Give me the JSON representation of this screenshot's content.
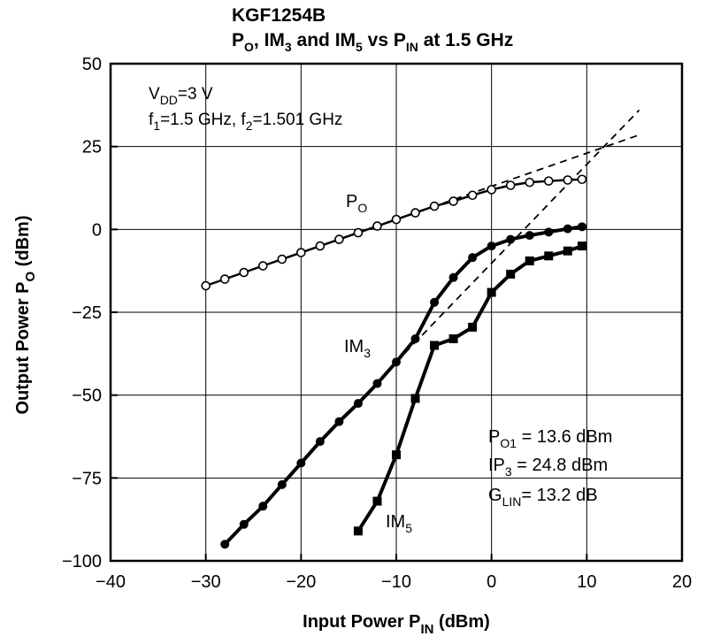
{
  "chart_data": {
    "type": "line",
    "title_line1": "KGF1254B",
    "title_line2": {
      "a": "P",
      "a_sub": "O",
      "b": ", IM",
      "b_sub": "3",
      "c": " and IM",
      "c_sub": "5",
      "d": " vs P",
      "d_sub": "IN",
      "e": " at 1.5 GHz"
    },
    "xlabel": {
      "main": "Input Power  P",
      "sub": "IN",
      "tail": "  (dBm)"
    },
    "ylabel": {
      "main": "Output Power  P",
      "sub": "O",
      "tail": "  (dBm)"
    },
    "xlim": [
      -40,
      20
    ],
    "ylim": [
      -100,
      50
    ],
    "x_ticks": [
      -40,
      -30,
      -20,
      -10,
      0,
      10,
      20
    ],
    "y_ticks": [
      -100,
      -75,
      -50,
      -25,
      0,
      25,
      50
    ],
    "x_tick_labels": [
      "−40",
      "−30",
      "−20",
      "−10",
      "0",
      "10",
      "20"
    ],
    "y_tick_labels": [
      "−100",
      "−75",
      "−50",
      "−25",
      "0",
      "25",
      "50"
    ],
    "grid": true,
    "conditions": {
      "vdd": {
        "main": "V",
        "sub": "DD",
        "tail": "=3 V"
      },
      "freq": {
        "a": "f",
        "a_sub": "1",
        "b": "=1.5 GHz, f",
        "b_sub": "2",
        "c": "=1.501 GHz"
      }
    },
    "summary": [
      {
        "main": "P",
        "sub": "O1",
        "tail": "  =  13.6 dBm"
      },
      {
        "main": "IP",
        "sub": "3",
        "tail": "  =  24.8 dBm"
      },
      {
        "main": "G",
        "sub": "LIN",
        "tail": "=  13.2 dB"
      }
    ],
    "series": [
      {
        "name": "P_O",
        "label": {
          "main": "P",
          "sub": "O"
        },
        "marker": "open-circle",
        "x": [
          -30,
          -28,
          -26,
          -24,
          -22,
          -20,
          -18,
          -16,
          -14,
          -12,
          -10,
          -8,
          -6,
          -4,
          -2,
          0,
          2,
          4,
          6,
          8,
          9.5
        ],
        "y": [
          -17,
          -15,
          -13,
          -11,
          -9,
          -7,
          -5,
          -3,
          -1,
          1,
          3,
          5,
          7,
          8.5,
          10.3,
          12,
          13.3,
          14.2,
          14.6,
          14.9,
          15.1
        ]
      },
      {
        "name": "IM_3",
        "label": {
          "main": "IM",
          "sub": "3"
        },
        "marker": "filled-circle",
        "x": [
          -28,
          -26,
          -24,
          -22,
          -20,
          -18,
          -16,
          -14,
          -12,
          -10,
          -8,
          -6,
          -4,
          -2,
          0,
          2,
          4,
          6,
          8,
          9.5
        ],
        "y": [
          -95,
          -89,
          -83.5,
          -77,
          -70.5,
          -64,
          -58,
          -52.5,
          -46.5,
          -40,
          -33,
          -22,
          -14.5,
          -8.5,
          -5,
          -3,
          -1.8,
          -0.8,
          0.2,
          0.8
        ]
      },
      {
        "name": "IM_5",
        "label": {
          "main": "IM",
          "sub": "5"
        },
        "marker": "filled-square",
        "x": [
          -14,
          -12,
          -10,
          -8,
          -6,
          -4,
          -2,
          0,
          2,
          4,
          6,
          8,
          9.5
        ],
        "y": [
          -91,
          -82,
          -68,
          -51,
          -35,
          -33,
          -29.5,
          -19,
          -13.5,
          -9.5,
          -8,
          -6.5,
          -5
        ]
      }
    ],
    "extrapolations": [
      {
        "name": "P_O linear extrapolation",
        "x": [
          -10,
          15.5
        ],
        "y": [
          3,
          28.5
        ]
      },
      {
        "name": "IM_3 extrapolation",
        "x": [
          -10,
          15.5
        ],
        "y": [
          -40,
          36
        ]
      }
    ]
  }
}
